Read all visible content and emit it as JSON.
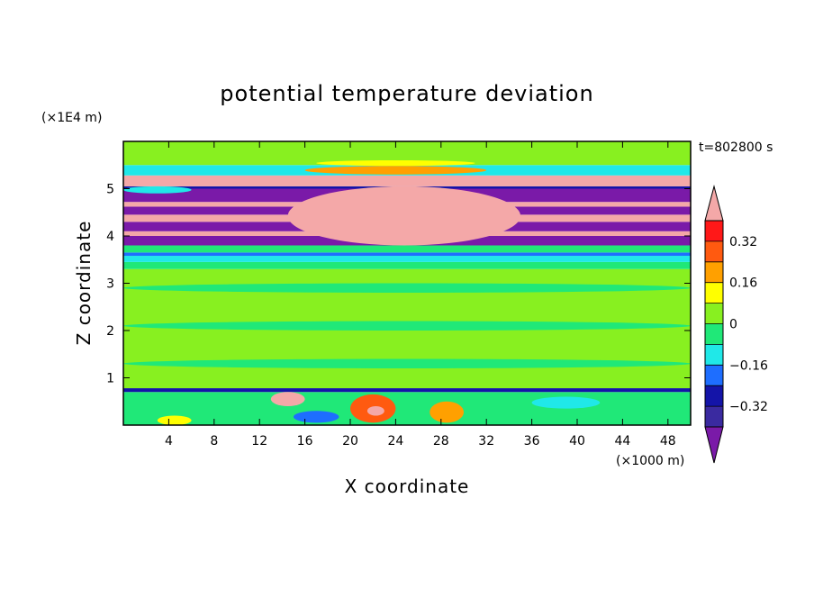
{
  "chart_data": {
    "type": "heatmap",
    "title": "potential temperature deviation",
    "xlabel": "X coordinate",
    "ylabel": "Z coordinate",
    "x_unit": "(×1000 m)",
    "y_unit": "(×1E4 m)",
    "time_label": "t=802800 s",
    "xlim": [
      0,
      50
    ],
    "ylim": [
      0,
      6
    ],
    "x_ticks": [
      4,
      8,
      12,
      16,
      20,
      24,
      28,
      32,
      36,
      40,
      44,
      48
    ],
    "y_ticks": [
      1,
      2,
      3,
      4,
      5
    ],
    "colorbar": {
      "levels": [
        -0.4,
        -0.32,
        -0.24,
        -0.16,
        -0.08,
        0,
        0.08,
        0.16,
        0.24,
        0.32,
        0.4
      ],
      "tick_labels": [
        {
          "value": 0.32,
          "label": "0.32"
        },
        {
          "value": 0.16,
          "label": "0.16"
        },
        {
          "value": 0,
          "label": "0"
        },
        {
          "value": -0.16,
          "label": "−0.16"
        },
        {
          "value": -0.32,
          "label": "−0.32"
        }
      ],
      "colors": [
        "#7a1aa8",
        "#3a2aa0",
        "#1414a8",
        "#1e6eff",
        "#20e8e8",
        "#20e878",
        "#88f020",
        "#ffff00",
        "#ffa000",
        "#ff5a10",
        "#ff1818",
        "#f4a8a8"
      ],
      "extend": "both"
    },
    "palette_by_value": {
      "-0.4": "#7a1aa8",
      "-0.32": "#3a2aa0",
      "-0.24": "#1414a8",
      "-0.16": "#1e6eff",
      "-0.08": "#20e8e8",
      "0": "#20e878",
      "0.08": "#88f020",
      "0.16": "#ffff00",
      "0.24": "#ffa000",
      "0.32": "#ff5a10",
      "0.4": "#f4a8a8"
    },
    "bands": [
      {
        "z": [
          0.0,
          0.7
        ],
        "value": 0.0
      },
      {
        "z": [
          0.7,
          0.78
        ],
        "value": -0.24
      },
      {
        "z": [
          0.78,
          3.3
        ],
        "value": 0.08
      },
      {
        "z": [
          3.3,
          3.45
        ],
        "value": 0.0
      },
      {
        "z": [
          3.45,
          3.58
        ],
        "value": -0.08
      },
      {
        "z": [
          3.58,
          3.65
        ],
        "value": -0.16
      },
      {
        "z": [
          3.65,
          3.8
        ],
        "value": 0.0
      },
      {
        "z": [
          3.8,
          4.0
        ],
        "value": -0.4
      },
      {
        "z": [
          4.0,
          4.1
        ],
        "value": 0.4
      },
      {
        "z": [
          4.1,
          4.3
        ],
        "value": -0.4
      },
      {
        "z": [
          4.3,
          4.45
        ],
        "value": 0.4
      },
      {
        "z": [
          4.45,
          4.62
        ],
        "value": -0.4
      },
      {
        "z": [
          4.62,
          4.72
        ],
        "value": 0.4
      },
      {
        "z": [
          4.72,
          5.0
        ],
        "value": -0.4
      },
      {
        "z": [
          5.0,
          5.05
        ],
        "value": -0.24
      },
      {
        "z": [
          5.05,
          5.28
        ],
        "value": 0.4
      },
      {
        "z": [
          5.28,
          5.5
        ],
        "value": -0.08
      },
      {
        "z": [
          5.5,
          6.0
        ],
        "value": 0.08
      }
    ],
    "patches": [
      {
        "x": [
          0,
          50
        ],
        "z": [
          2.8,
          3.0
        ],
        "value": 0.0
      },
      {
        "x": [
          0,
          50
        ],
        "z": [
          2.0,
          2.2
        ],
        "value": 0.0
      },
      {
        "x": [
          0,
          50
        ],
        "z": [
          1.2,
          1.4
        ],
        "value": 0.0
      },
      {
        "x": [
          14.5,
          35
        ],
        "z": [
          3.8,
          5.05
        ],
        "value": 0.4
      },
      {
        "x": [
          16,
          32
        ],
        "z": [
          5.3,
          5.48
        ],
        "value": 0.24
      },
      {
        "x": [
          17,
          31
        ],
        "z": [
          5.48,
          5.6
        ],
        "value": 0.16
      },
      {
        "x": [
          0,
          6
        ],
        "z": [
          4.9,
          5.05
        ],
        "value": -0.08
      },
      {
        "x": [
          13,
          16
        ],
        "z": [
          0.4,
          0.7
        ],
        "value": 0.4
      },
      {
        "x": [
          20,
          24
        ],
        "z": [
          0.05,
          0.65
        ],
        "value": 0.32
      },
      {
        "x": [
          21.5,
          23
        ],
        "z": [
          0.2,
          0.4
        ],
        "value": 0.4
      },
      {
        "x": [
          27,
          30
        ],
        "z": [
          0.05,
          0.5
        ],
        "value": 0.24
      },
      {
        "x": [
          15,
          19
        ],
        "z": [
          0.05,
          0.3
        ],
        "value": -0.16
      },
      {
        "x": [
          36,
          42
        ],
        "z": [
          0.35,
          0.6
        ],
        "value": -0.08
      },
      {
        "x": [
          3,
          6
        ],
        "z": [
          0.0,
          0.2
        ],
        "value": 0.16
      }
    ]
  }
}
